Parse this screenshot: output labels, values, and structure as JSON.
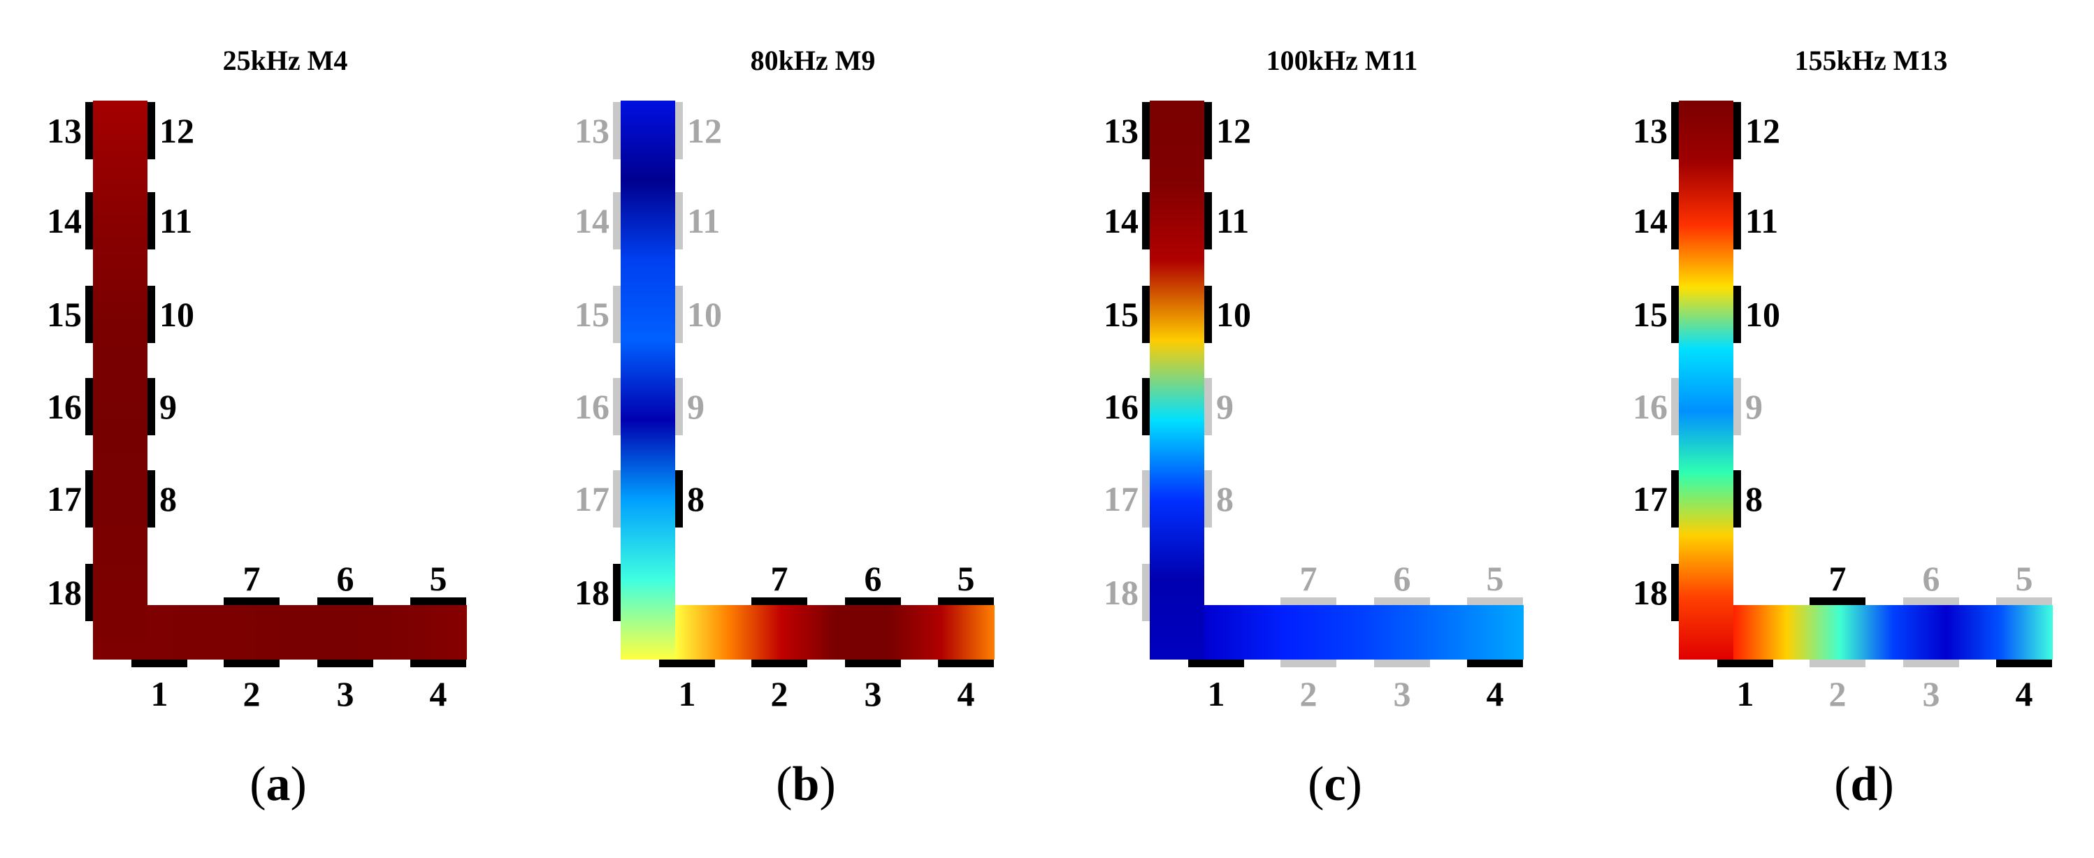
{
  "colors": {
    "active_sensor": "#000000",
    "inactive_sensor": "#c8c8c8",
    "active_label": "#000000",
    "inactive_label": "#a6a6a6",
    "colormap": "jet"
  },
  "panels": [
    {
      "title": "25kHz M4",
      "caption_letter": "a",
      "vertical_gradient": [
        "#a40000",
        "#8b0000",
        "#7a0000",
        "#760000",
        "#7a0000",
        "#7e0000"
      ],
      "horizontal_gradient": [
        "#7e0000",
        "#7c0000",
        "#780000",
        "#7a0000",
        "#860000"
      ],
      "sensors": [
        {
          "id": "1",
          "active": true
        },
        {
          "id": "2",
          "active": true
        },
        {
          "id": "3",
          "active": true
        },
        {
          "id": "4",
          "active": true
        },
        {
          "id": "5",
          "active": true
        },
        {
          "id": "6",
          "active": true
        },
        {
          "id": "7",
          "active": true
        },
        {
          "id": "8",
          "active": true
        },
        {
          "id": "9",
          "active": true
        },
        {
          "id": "10",
          "active": true
        },
        {
          "id": "11",
          "active": true
        },
        {
          "id": "12",
          "active": true
        },
        {
          "id": "13",
          "active": true
        },
        {
          "id": "14",
          "active": true
        },
        {
          "id": "15",
          "active": true
        },
        {
          "id": "16",
          "active": true
        },
        {
          "id": "17",
          "active": true
        },
        {
          "id": "18",
          "active": true
        }
      ]
    },
    {
      "title": "80kHz M9",
      "caption_letter": "b",
      "vertical_gradient": [
        "#0010e0",
        "#000090",
        "#0040f0",
        "#0060ff",
        "#0000b0",
        "#00a0ff",
        "#40ffe0",
        "#ffff40"
      ],
      "horizontal_gradient": [
        "#ffff40",
        "#ff8000",
        "#c00000",
        "#7a0000",
        "#780000",
        "#b00000",
        "#ff8000"
      ],
      "sensors": [
        {
          "id": "1",
          "active": true
        },
        {
          "id": "2",
          "active": true
        },
        {
          "id": "3",
          "active": true
        },
        {
          "id": "4",
          "active": true
        },
        {
          "id": "5",
          "active": true
        },
        {
          "id": "6",
          "active": true
        },
        {
          "id": "7",
          "active": true
        },
        {
          "id": "8",
          "active": true
        },
        {
          "id": "9",
          "active": false
        },
        {
          "id": "10",
          "active": false
        },
        {
          "id": "11",
          "active": false
        },
        {
          "id": "12",
          "active": false
        },
        {
          "id": "13",
          "active": false
        },
        {
          "id": "14",
          "active": false
        },
        {
          "id": "15",
          "active": false
        },
        {
          "id": "16",
          "active": false
        },
        {
          "id": "17",
          "active": false
        },
        {
          "id": "18",
          "active": true
        }
      ]
    },
    {
      "title": "100kHz M11",
      "caption_letter": "c",
      "vertical_gradient": [
        "#7a0000",
        "#800000",
        "#b00000",
        "#ffcc00",
        "#00e0ff",
        "#0030ff",
        "#0000b0",
        "#0000c0"
      ],
      "horizontal_gradient": [
        "#0000d0",
        "#0020ff",
        "#0040ff",
        "#0070ff",
        "#00a8ff"
      ],
      "sensors": [
        {
          "id": "1",
          "active": true
        },
        {
          "id": "2",
          "active": false
        },
        {
          "id": "3",
          "active": false
        },
        {
          "id": "4",
          "active": true
        },
        {
          "id": "5",
          "active": false
        },
        {
          "id": "6",
          "active": false
        },
        {
          "id": "7",
          "active": false
        },
        {
          "id": "8",
          "active": false
        },
        {
          "id": "9",
          "active": false
        },
        {
          "id": "10",
          "active": true
        },
        {
          "id": "11",
          "active": true
        },
        {
          "id": "12",
          "active": true
        },
        {
          "id": "13",
          "active": true
        },
        {
          "id": "14",
          "active": true
        },
        {
          "id": "15",
          "active": true
        },
        {
          "id": "16",
          "active": true
        },
        {
          "id": "17",
          "active": false
        },
        {
          "id": "18",
          "active": false
        }
      ]
    },
    {
      "title": "155kHz M13",
      "caption_letter": "d",
      "vertical_gradient": [
        "#7a0000",
        "#a00000",
        "#ff3000",
        "#ffe000",
        "#00e0ff",
        "#0090ff",
        "#30ffb0",
        "#ffd000",
        "#ff4000",
        "#e00000"
      ],
      "horizontal_gradient": [
        "#ff2000",
        "#ffd000",
        "#40ffd0",
        "#0040ff",
        "#0000d0",
        "#0050ff",
        "#40ffe0"
      ],
      "sensors": [
        {
          "id": "1",
          "active": true
        },
        {
          "id": "2",
          "active": false
        },
        {
          "id": "3",
          "active": false
        },
        {
          "id": "4",
          "active": true
        },
        {
          "id": "5",
          "active": false
        },
        {
          "id": "6",
          "active": false
        },
        {
          "id": "7",
          "active": true
        },
        {
          "id": "8",
          "active": true
        },
        {
          "id": "9",
          "active": false
        },
        {
          "id": "10",
          "active": true
        },
        {
          "id": "11",
          "active": true
        },
        {
          "id": "12",
          "active": true
        },
        {
          "id": "13",
          "active": true
        },
        {
          "id": "14",
          "active": true
        },
        {
          "id": "15",
          "active": true
        },
        {
          "id": "16",
          "active": false
        },
        {
          "id": "17",
          "active": true
        },
        {
          "id": "18",
          "active": true
        }
      ]
    }
  ]
}
